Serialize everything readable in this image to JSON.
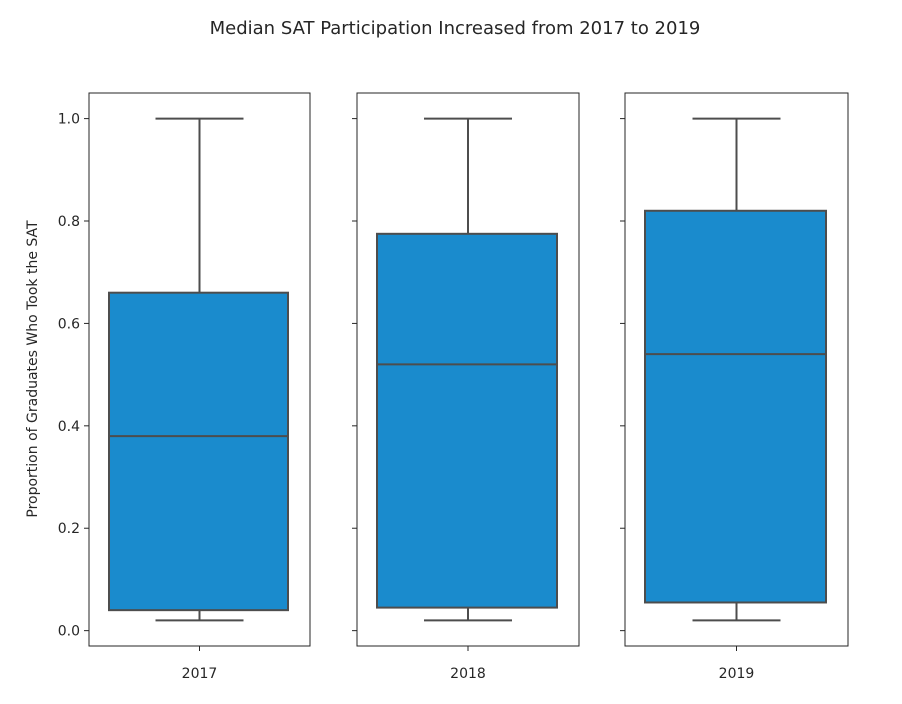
{
  "chart_data": {
    "type": "box",
    "title": "Median SAT Participation Increased from 2017 to 2019",
    "ylabel": "Proportion of Graduates Who Took the SAT",
    "ylim": [
      -0.03,
      1.05
    ],
    "yticks": [
      "0.0",
      "0.2",
      "0.4",
      "0.6",
      "0.8",
      "1.0"
    ],
    "shared_y": true,
    "grid": false,
    "colors": {
      "box": "#1a8bcd",
      "line": "#4d4d4d",
      "frame": "#262626"
    },
    "panels": [
      {
        "label": "2017",
        "whisker_low": 0.02,
        "q1": 0.04,
        "median": 0.38,
        "q3": 0.66,
        "whisker_high": 1.0
      },
      {
        "label": "2018",
        "whisker_low": 0.02,
        "q1": 0.045,
        "median": 0.52,
        "q3": 0.775,
        "whisker_high": 1.0
      },
      {
        "label": "2019",
        "whisker_low": 0.02,
        "q1": 0.055,
        "median": 0.54,
        "q3": 0.82,
        "whisker_high": 1.0
      }
    ]
  }
}
